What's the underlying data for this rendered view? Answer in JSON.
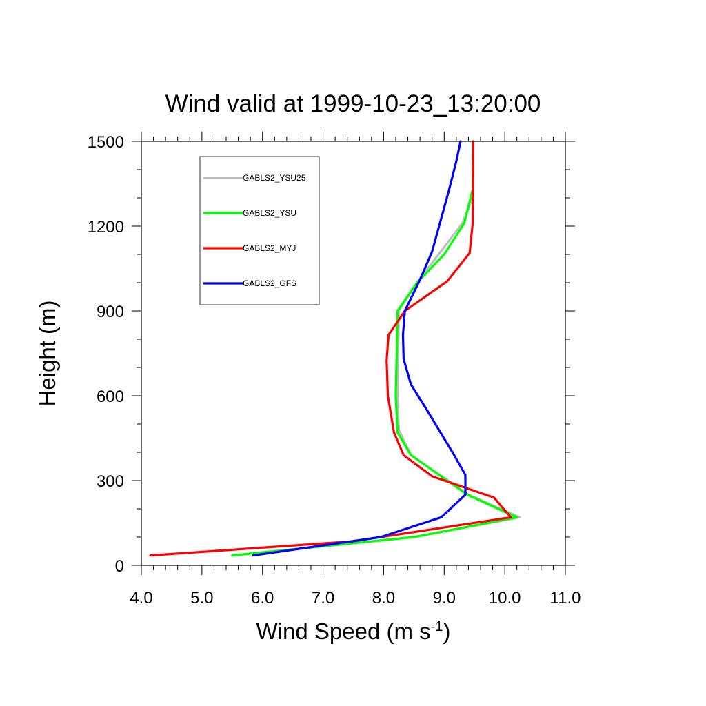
{
  "chart_data": {
    "type": "line",
    "title": "Wind valid at 1999-10-23_13:20:00",
    "xlabel": "Wind Speed (m s",
    "xlabel_superscript": "-1",
    "xlabel_suffix": ")",
    "ylabel": "Height (m)",
    "xlim": [
      4.0,
      11.0
    ],
    "ylim": [
      0,
      1500
    ],
    "x_major_ticks": [
      "4.0",
      "5.0",
      "6.0",
      "7.0",
      "8.0",
      "9.0",
      "10.0",
      "11.0"
    ],
    "y_major_ticks": [
      "0",
      "300",
      "600",
      "900",
      "1200",
      "1500"
    ],
    "grid": false,
    "legend_position": "top-left",
    "series": [
      {
        "name": "GABLS2_YSU25",
        "color": "#bdbdbd",
        "points": [
          [
            5.5,
            35
          ],
          [
            8.5,
            100
          ],
          [
            10.25,
            170
          ],
          [
            9.4,
            250
          ],
          [
            8.45,
            390
          ],
          [
            8.25,
            480
          ],
          [
            8.23,
            600
          ],
          [
            8.25,
            900
          ],
          [
            8.55,
            1000
          ],
          [
            9.3,
            1210
          ],
          [
            9.47,
            1300
          ],
          [
            9.48,
            1500
          ]
        ]
      },
      {
        "name": "GABLS2_YSU",
        "color": "#00ff00",
        "points": [
          [
            5.5,
            35
          ],
          [
            8.5,
            100
          ],
          [
            10.2,
            170
          ],
          [
            9.38,
            250
          ],
          [
            8.45,
            390
          ],
          [
            8.23,
            470
          ],
          [
            8.2,
            600
          ],
          [
            8.23,
            900
          ],
          [
            8.55,
            1000
          ],
          [
            9.0,
            1100
          ],
          [
            9.33,
            1210
          ],
          [
            9.47,
            1330
          ],
          [
            9.48,
            1500
          ]
        ]
      },
      {
        "name": "GABLS2_MYJ",
        "color": "#ff0000",
        "points": [
          [
            4.15,
            35
          ],
          [
            7.5,
            85
          ],
          [
            10.1,
            170
          ],
          [
            9.82,
            240
          ],
          [
            8.8,
            315
          ],
          [
            8.33,
            390
          ],
          [
            8.17,
            470
          ],
          [
            8.07,
            600
          ],
          [
            8.05,
            725
          ],
          [
            8.08,
            815
          ],
          [
            8.35,
            900
          ],
          [
            9.05,
            1005
          ],
          [
            9.42,
            1105
          ],
          [
            9.47,
            1210
          ],
          [
            9.48,
            1500
          ]
        ]
      },
      {
        "name": "GABLS2_GFS",
        "color": "#0000ff",
        "points": [
          [
            5.85,
            35
          ],
          [
            7.95,
            100
          ],
          [
            8.95,
            170
          ],
          [
            9.35,
            250
          ],
          [
            9.35,
            320
          ],
          [
            9.15,
            395
          ],
          [
            8.7,
            555
          ],
          [
            8.45,
            640
          ],
          [
            8.33,
            730
          ],
          [
            8.32,
            815
          ],
          [
            8.35,
            900
          ],
          [
            8.6,
            1010
          ],
          [
            8.8,
            1110
          ],
          [
            9.07,
            1320
          ],
          [
            9.2,
            1430
          ],
          [
            9.27,
            1500
          ]
        ]
      }
    ]
  }
}
